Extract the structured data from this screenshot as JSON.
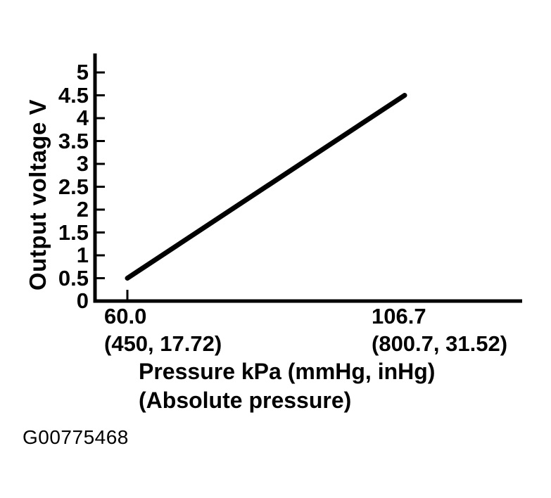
{
  "figure": {
    "background": "#ffffff",
    "ink_color": "#000000",
    "code": "G00775468"
  },
  "chart_data": {
    "type": "line",
    "title": "",
    "ylabel": "Output voltage V",
    "xlabel": "Pressure kPa (mmHg, inHg)",
    "xlabel_line2": "(Absolute pressure)",
    "ylim": [
      0,
      5
    ],
    "y_tick_step": 0.5,
    "y_ticks": [
      "0",
      "0.5",
      "1",
      "1.5",
      "2",
      "2.5",
      "3",
      "3.5",
      "4",
      "4.5",
      "5"
    ],
    "x_ticks": [
      {
        "kpa": "60.0",
        "sub": "(450, 17.72)"
      },
      {
        "kpa": "106.7",
        "sub": "(800.7, 31.52)"
      }
    ],
    "series": [
      {
        "name": "output voltage",
        "points": [
          {
            "x_kpa": 60.0,
            "x_mmhg": 450,
            "x_inhg": 17.72,
            "y_v": 0.5
          },
          {
            "x_kpa": 106.7,
            "x_mmhg": 800.7,
            "x_inhg": 31.52,
            "y_v": 4.5
          }
        ]
      }
    ],
    "grid": false,
    "legend": false,
    "axis_color": "#000000",
    "line_color": "#000000"
  }
}
